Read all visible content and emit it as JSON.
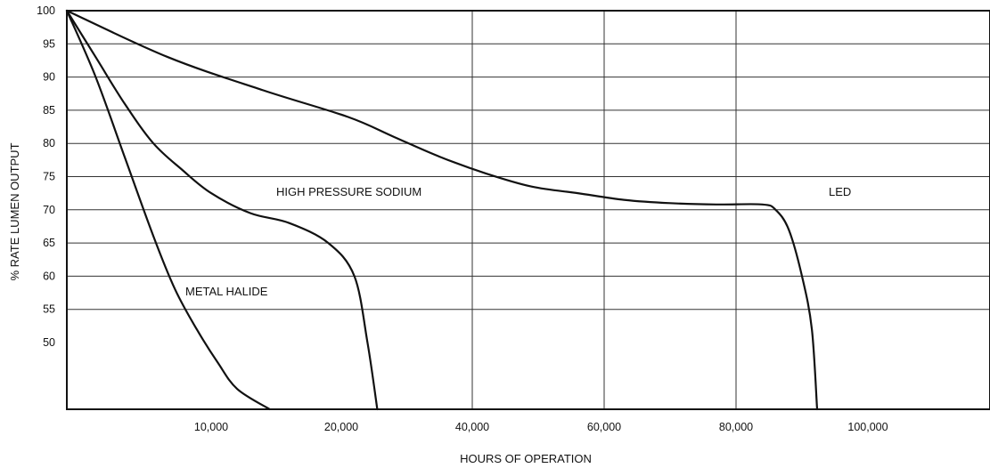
{
  "chart_data": {
    "type": "line",
    "title": "",
    "xlabel": "HOURS OF OPERATION",
    "ylabel": "% RATE LUMEN OUTPUT",
    "y_ticks": [
      "100",
      "95",
      "90",
      "85",
      "80",
      "75",
      "70",
      "65",
      "60",
      "55",
      "50"
    ],
    "x_ticks": [
      "10,000",
      "20,000",
      "40,000",
      "60,000",
      "80,000",
      "100,000"
    ],
    "grid": true,
    "series": [
      {
        "name": "METAL HALIDE",
        "points": [
          [
            0,
            100
          ],
          [
            2000,
            90
          ],
          [
            4000,
            78
          ],
          [
            6000,
            66
          ],
          [
            7500,
            58
          ],
          [
            9000,
            52
          ],
          [
            10500,
            47
          ],
          [
            12000,
            43
          ],
          [
            14500,
            38
          ]
        ]
      },
      {
        "name": "HIGH PRESSURE SODIUM",
        "points": [
          [
            0,
            100
          ],
          [
            2000,
            93
          ],
          [
            4000,
            86
          ],
          [
            6000,
            80
          ],
          [
            8000,
            76
          ],
          [
            10000,
            72.5
          ],
          [
            13000,
            69.5
          ],
          [
            16000,
            68
          ],
          [
            19000,
            65
          ],
          [
            22000,
            60
          ],
          [
            24000,
            50
          ],
          [
            25500,
            38
          ]
        ]
      },
      {
        "name": "LED",
        "points": [
          [
            0,
            100
          ],
          [
            7000,
            93
          ],
          [
            14000,
            88
          ],
          [
            21000,
            84
          ],
          [
            28000,
            81
          ],
          [
            35000,
            78
          ],
          [
            42000,
            75.5
          ],
          [
            49000,
            73.5
          ],
          [
            56000,
            72.5
          ],
          [
            63000,
            71.5
          ],
          [
            70000,
            71
          ],
          [
            77000,
            70.8
          ],
          [
            84000,
            70.8
          ],
          [
            86000,
            70
          ],
          [
            88000,
            67
          ],
          [
            90000,
            60
          ],
          [
            91500,
            52
          ],
          [
            92300,
            38
          ]
        ]
      }
    ]
  }
}
